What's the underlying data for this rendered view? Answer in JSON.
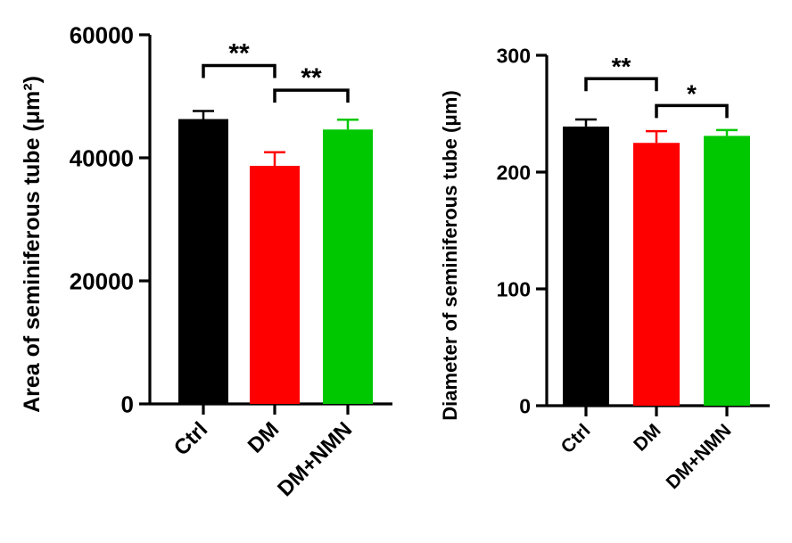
{
  "chart_data": [
    {
      "type": "bar",
      "categories": [
        "Ctrl",
        "DM",
        "DM+NMN"
      ],
      "values": [
        46300,
        38700,
        44600
      ],
      "errors": [
        1300,
        2200,
        1600
      ],
      "colors": [
        "#000000",
        "#ff0000",
        "#00c800"
      ],
      "ylabel": "Area of seminiferous tube (μm²)",
      "ylim": [
        0,
        60000
      ],
      "yticks": [
        0,
        20000,
        40000,
        60000
      ],
      "grid": false,
      "significance": [
        {
          "from": 0,
          "to": 1,
          "label": "**",
          "y": 55000
        },
        {
          "from": 1,
          "to": 2,
          "label": "**",
          "y": 51000
        }
      ]
    },
    {
      "type": "bar",
      "categories": [
        "Ctrl",
        "DM",
        "DM+NMN"
      ],
      "values": [
        239,
        225,
        231
      ],
      "errors": [
        6,
        10,
        5
      ],
      "colors": [
        "#000000",
        "#ff0000",
        "#00c800"
      ],
      "ylabel": "Diameter of seminiferous tube (μm)",
      "ylim": [
        0,
        300
      ],
      "yticks": [
        0,
        100,
        200,
        300
      ],
      "grid": false,
      "significance": [
        {
          "from": 0,
          "to": 1,
          "label": "**",
          "y": 280
        },
        {
          "from": 1,
          "to": 2,
          "label": "*",
          "y": 257
        }
      ]
    }
  ]
}
